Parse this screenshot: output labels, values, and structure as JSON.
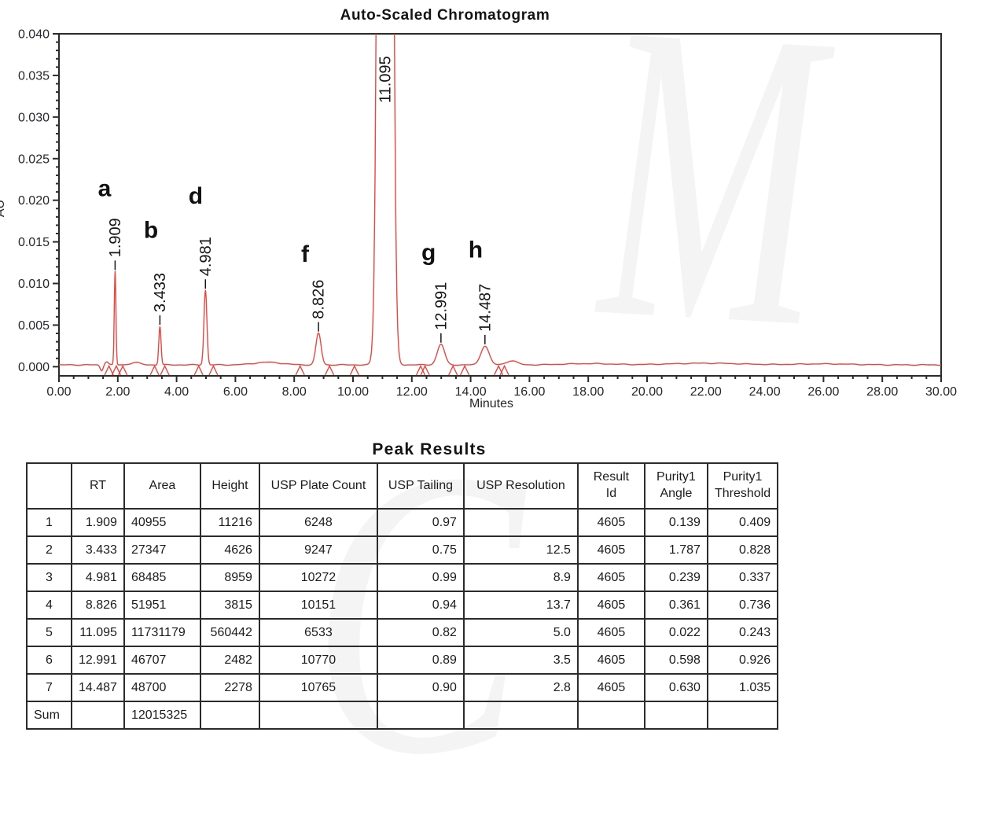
{
  "chart": {
    "title": "Auto-Scaled Chromatogram",
    "x_axis_label": "Minutes",
    "y_axis_label": "AU"
  },
  "chart_data": {
    "type": "line",
    "title": "Auto-Scaled Chromatogram",
    "xlabel": "Minutes",
    "ylabel": "AU",
    "xlim": [
      0,
      30
    ],
    "ylim": [
      -0.0011,
      0.04
    ],
    "x_major_tick_step": 2.0,
    "x_minor_tick_step": 0.5,
    "y_major_tick_step": 0.005,
    "y_minor_tick_step": 0.001,
    "x_tick_decimals": 2,
    "y_tick_decimals": 3,
    "grid": "off",
    "trace_color": "#e8463f",
    "axis_color": "#2b2b2b",
    "text_color": "#26262c",
    "baseline_au": 0.00022,
    "peaks": [
      {
        "rt": 1.909,
        "height_uau": 11216,
        "sigma": 0.028,
        "label": "1.909",
        "letter": "a",
        "letter_t": 1.55,
        "letter_au": 0.0205
      },
      {
        "rt": 3.433,
        "height_uau": 4626,
        "sigma": 0.038,
        "label": "3.433",
        "letter": "b",
        "letter_t": 3.13,
        "letter_au": 0.0155
      },
      {
        "rt": 4.981,
        "height_uau": 8959,
        "sigma": 0.05,
        "label": "4.981",
        "letter": "d",
        "letter_t": 4.65,
        "letter_au": 0.0196
      },
      {
        "rt": 8.826,
        "height_uau": 3815,
        "sigma": 0.088,
        "label": "8.826",
        "letter": "f",
        "letter_t": 8.37,
        "letter_au": 0.0126
      },
      {
        "rt": 11.095,
        "height_uau": 560442,
        "sigma": 0.137,
        "label": "11.095",
        "letter": "",
        "letter_t": 0,
        "letter_au": 0
      },
      {
        "rt": 12.991,
        "height_uau": 2482,
        "sigma": 0.125,
        "label": "12.991",
        "letter": "g",
        "letter_t": 12.57,
        "letter_au": 0.0128
      },
      {
        "rt": 14.487,
        "height_uau": 2278,
        "sigma": 0.14,
        "label": "14.487",
        "letter": "h",
        "letter_t": 14.17,
        "letter_au": 0.0131
      }
    ],
    "integration_marks_t": [
      1.7,
      1.95,
      2.17,
      3.25,
      3.6,
      4.75,
      5.25,
      8.2,
      9.2,
      10.05,
      12.3,
      12.45,
      13.4,
      13.8,
      14.95,
      15.15
    ],
    "baseline_features": [
      {
        "t": 1.45,
        "a": -0.0007,
        "s": 0.05
      },
      {
        "t": 1.62,
        "a": 0.0004,
        "s": 0.06
      },
      {
        "t": 2.6,
        "a": 0.0003,
        "s": 0.15
      },
      {
        "t": 7.1,
        "a": 0.00032,
        "s": 0.45
      },
      {
        "t": 15.4,
        "a": 0.0005,
        "s": 0.18
      },
      {
        "t": 18.0,
        "a": 0.00015,
        "s": 0.8
      },
      {
        "t": 22.0,
        "a": 0.0002,
        "s": 1.2
      },
      {
        "t": 26.0,
        "a": 0.00012,
        "s": 0.9
      }
    ]
  },
  "table": {
    "title": "Peak Results",
    "columns": [
      {
        "label": "",
        "align": "center"
      },
      {
        "label": "RT",
        "align": "right"
      },
      {
        "label": "Area",
        "align": "left"
      },
      {
        "label": "Height",
        "align": "right"
      },
      {
        "label": "USP Plate Count",
        "align": "center"
      },
      {
        "label": "USP Tailing",
        "align": "right"
      },
      {
        "label": "USP Resolution",
        "align": "right"
      },
      {
        "label": "Result\nId",
        "align": "center"
      },
      {
        "label": "Purity1\nAngle",
        "align": "right"
      },
      {
        "label": "Purity1\nThreshold",
        "align": "right"
      }
    ],
    "rows": [
      [
        "1",
        "1.909",
        "40955",
        "11216",
        "6248",
        "0.97",
        "",
        "4605",
        "0.139",
        "0.409"
      ],
      [
        "2",
        "3.433",
        "27347",
        "4626",
        "9247",
        "0.75",
        "12.5",
        "4605",
        "1.787",
        "0.828"
      ],
      [
        "3",
        "4.981",
        "68485",
        "8959",
        "10272",
        "0.99",
        "8.9",
        "4605",
        "0.239",
        "0.337"
      ],
      [
        "4",
        "8.826",
        "51951",
        "3815",
        "10151",
        "0.94",
        "13.7",
        "4605",
        "0.361",
        "0.736"
      ],
      [
        "5",
        "11.095",
        "11731179",
        "560442",
        "6533",
        "0.82",
        "5.0",
        "4605",
        "0.022",
        "0.243"
      ],
      [
        "6",
        "12.991",
        "46707",
        "2482",
        "10770",
        "0.89",
        "3.5",
        "4605",
        "0.598",
        "0.926"
      ],
      [
        "7",
        "14.487",
        "48700",
        "2278",
        "10765",
        "0.90",
        "2.8",
        "4605",
        "0.630",
        "1.035"
      ],
      [
        "Sum",
        "",
        "12015325",
        "",
        "",
        "",
        "",
        "",
        "",
        ""
      ]
    ]
  },
  "watermark": {
    "glyph_top_right": "M",
    "glyph_bottom_center": "C",
    "color": "#f4f4f4"
  }
}
